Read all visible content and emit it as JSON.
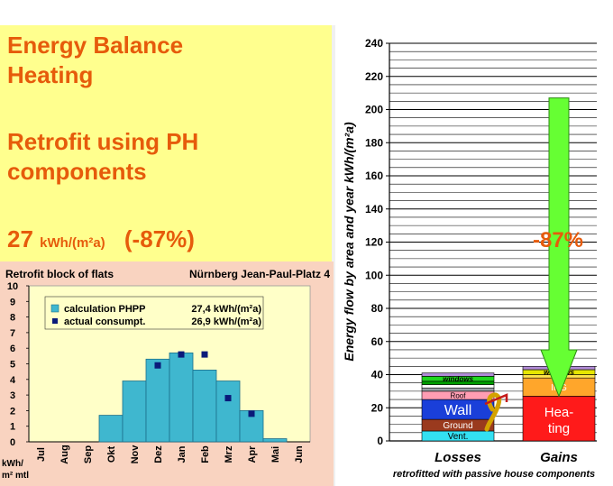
{
  "left": {
    "title_lines": [
      "Energy Balance",
      "Heating"
    ],
    "subtitle_lines": [
      "Retrofit using PH",
      "components"
    ],
    "result_value": "27",
    "result_unit": "kWh/(m²a)",
    "result_percent": "(-87%)"
  },
  "right": {
    "subcaption": "retrofitted with passive house components",
    "reduction_label": "-87%"
  },
  "colors": {
    "title_orange": "#e65b0b",
    "left_bg": "#ffff8e",
    "chart_panel_bg": "#f9d3c0",
    "plot_bg": "#ffffc8",
    "bar_cyan": "#3fb7cf",
    "marker_navy": "#0a1a7a",
    "arrow_green": "#66ff33"
  },
  "chart_data": [
    {
      "type": "bar",
      "title": "Retrofit block of flats",
      "subtitle": "Nürnberg Jean-Paul-Platz 4",
      "ylabel": "kWh/ m² mtl",
      "ylim": [
        0,
        10
      ],
      "yticks": [
        0,
        1,
        2,
        3,
        4,
        5,
        6,
        7,
        8,
        9,
        10
      ],
      "categories": [
        "Jul",
        "Aug",
        "Sep",
        "Okt",
        "Nov",
        "Dez",
        "Jan",
        "Feb",
        "Mrz",
        "Apr",
        "Mai",
        "Jun"
      ],
      "series": [
        {
          "name": "calculation PHPP",
          "legend_value": "27,4 kWh/(m²a)",
          "kind": "bar",
          "values": [
            0,
            0,
            0,
            1.7,
            3.9,
            5.3,
            5.7,
            4.6,
            3.9,
            2.0,
            0.2,
            0
          ]
        },
        {
          "name": "actual consumpt.",
          "legend_value": "26,9 kWh/(m²a)",
          "kind": "marker",
          "values": [
            null,
            null,
            null,
            null,
            null,
            4.9,
            5.6,
            5.6,
            2.8,
            1.8,
            null,
            null
          ]
        }
      ]
    },
    {
      "type": "bar",
      "stacked": true,
      "ylabel": "Energy flow by area and year kWh/(m²a)",
      "ylim": [
        0,
        240
      ],
      "yticks": [
        0,
        20,
        40,
        60,
        80,
        100,
        120,
        140,
        160,
        180,
        200,
        220,
        240
      ],
      "categories": [
        "Losses",
        "Gains"
      ],
      "stacks": [
        {
          "category": "Losses",
          "segments": [
            {
              "label": "Vent.",
              "value": 6,
              "color": "#33e0f2"
            },
            {
              "label": "Ground",
              "value": 7,
              "color": "#9a3a1e"
            },
            {
              "label": "Wall",
              "value": 12,
              "color": "#1a3fd9"
            },
            {
              "label": "Roof",
              "value": 5,
              "color": "#ff9db3"
            },
            {
              "label": "",
              "value": 2,
              "color": "#9aa0a6"
            },
            {
              "label": "",
              "value": 2,
              "color": "#ffffff"
            },
            {
              "label": "",
              "value": 2,
              "color": "#00a000"
            },
            {
              "label": "windows",
              "value": 3,
              "color": "#1fd61f"
            },
            {
              "label": "",
              "value": 2,
              "color": "#b08ad6"
            }
          ]
        },
        {
          "category": "Gains",
          "segments": [
            {
              "label": "Hea-ting",
              "value": 27,
              "color": "#ff1a1a"
            },
            {
              "label": "IHG",
              "value": 11,
              "color": "#ffa62b"
            },
            {
              "label": "",
              "value": 2,
              "color": "#ffe44d"
            },
            {
              "label": "windows",
              "value": 3,
              "color": "#e6e600"
            },
            {
              "label": "",
              "value": 2,
              "color": "#b08ad6"
            }
          ]
        }
      ],
      "arrow": {
        "from": 207,
        "to": 27,
        "label": "-87%"
      }
    }
  ]
}
